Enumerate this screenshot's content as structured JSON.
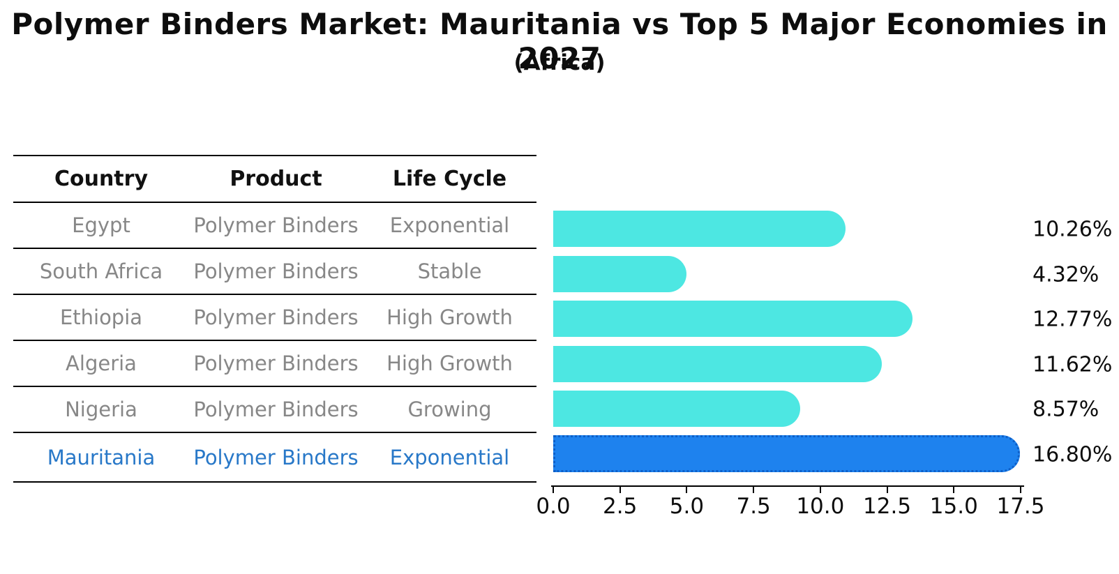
{
  "title": "Polymer Binders Market: Mauritania vs Top 5 Major Economies in 2027",
  "subtitle": "(Africa)",
  "table": {
    "headers": [
      "Country",
      "Product",
      "Life Cycle"
    ],
    "rows": [
      {
        "country": "Egypt",
        "product": "Polymer Binders",
        "life_cycle": "Exponential",
        "highlight": false
      },
      {
        "country": "South Africa",
        "product": "Polymer Binders",
        "life_cycle": "Stable",
        "highlight": false
      },
      {
        "country": "Ethiopia",
        "product": "Polymer Binders",
        "life_cycle": "High Growth",
        "highlight": false
      },
      {
        "country": "Algeria",
        "product": "Polymer Binders",
        "life_cycle": "High Growth",
        "highlight": false
      },
      {
        "country": "Nigeria",
        "product": "Polymer Binders",
        "life_cycle": "Growing",
        "highlight": false
      },
      {
        "country": "Mauritania",
        "product": "Polymer Binders",
        "life_cycle": "Exponential",
        "highlight": true
      }
    ]
  },
  "chart_data": {
    "type": "bar",
    "orientation": "horizontal",
    "categories": [
      "Egypt",
      "South Africa",
      "Ethiopia",
      "Algeria",
      "Nigeria",
      "Mauritania"
    ],
    "values": [
      10.26,
      4.32,
      12.77,
      11.62,
      8.57,
      16.8
    ],
    "value_labels": [
      "10.26%",
      "4.32%",
      "12.77%",
      "11.62%",
      "8.57%",
      "16.80%"
    ],
    "highlight_category": "Mauritania",
    "xlim": [
      0,
      17.5
    ],
    "xticks": [
      "0.0",
      "2.5",
      "5.0",
      "7.5",
      "10.0",
      "12.5",
      "15.0",
      "17.5"
    ],
    "grid": false,
    "legend": false
  },
  "colors": {
    "bar_default": "#4DE7E2",
    "bar_highlight": "#1E82EE",
    "bar_highlight_border": "#0D5FC8",
    "highlight_text": "#2878C8",
    "table_text": "#878787",
    "header_text": "#111111"
  }
}
